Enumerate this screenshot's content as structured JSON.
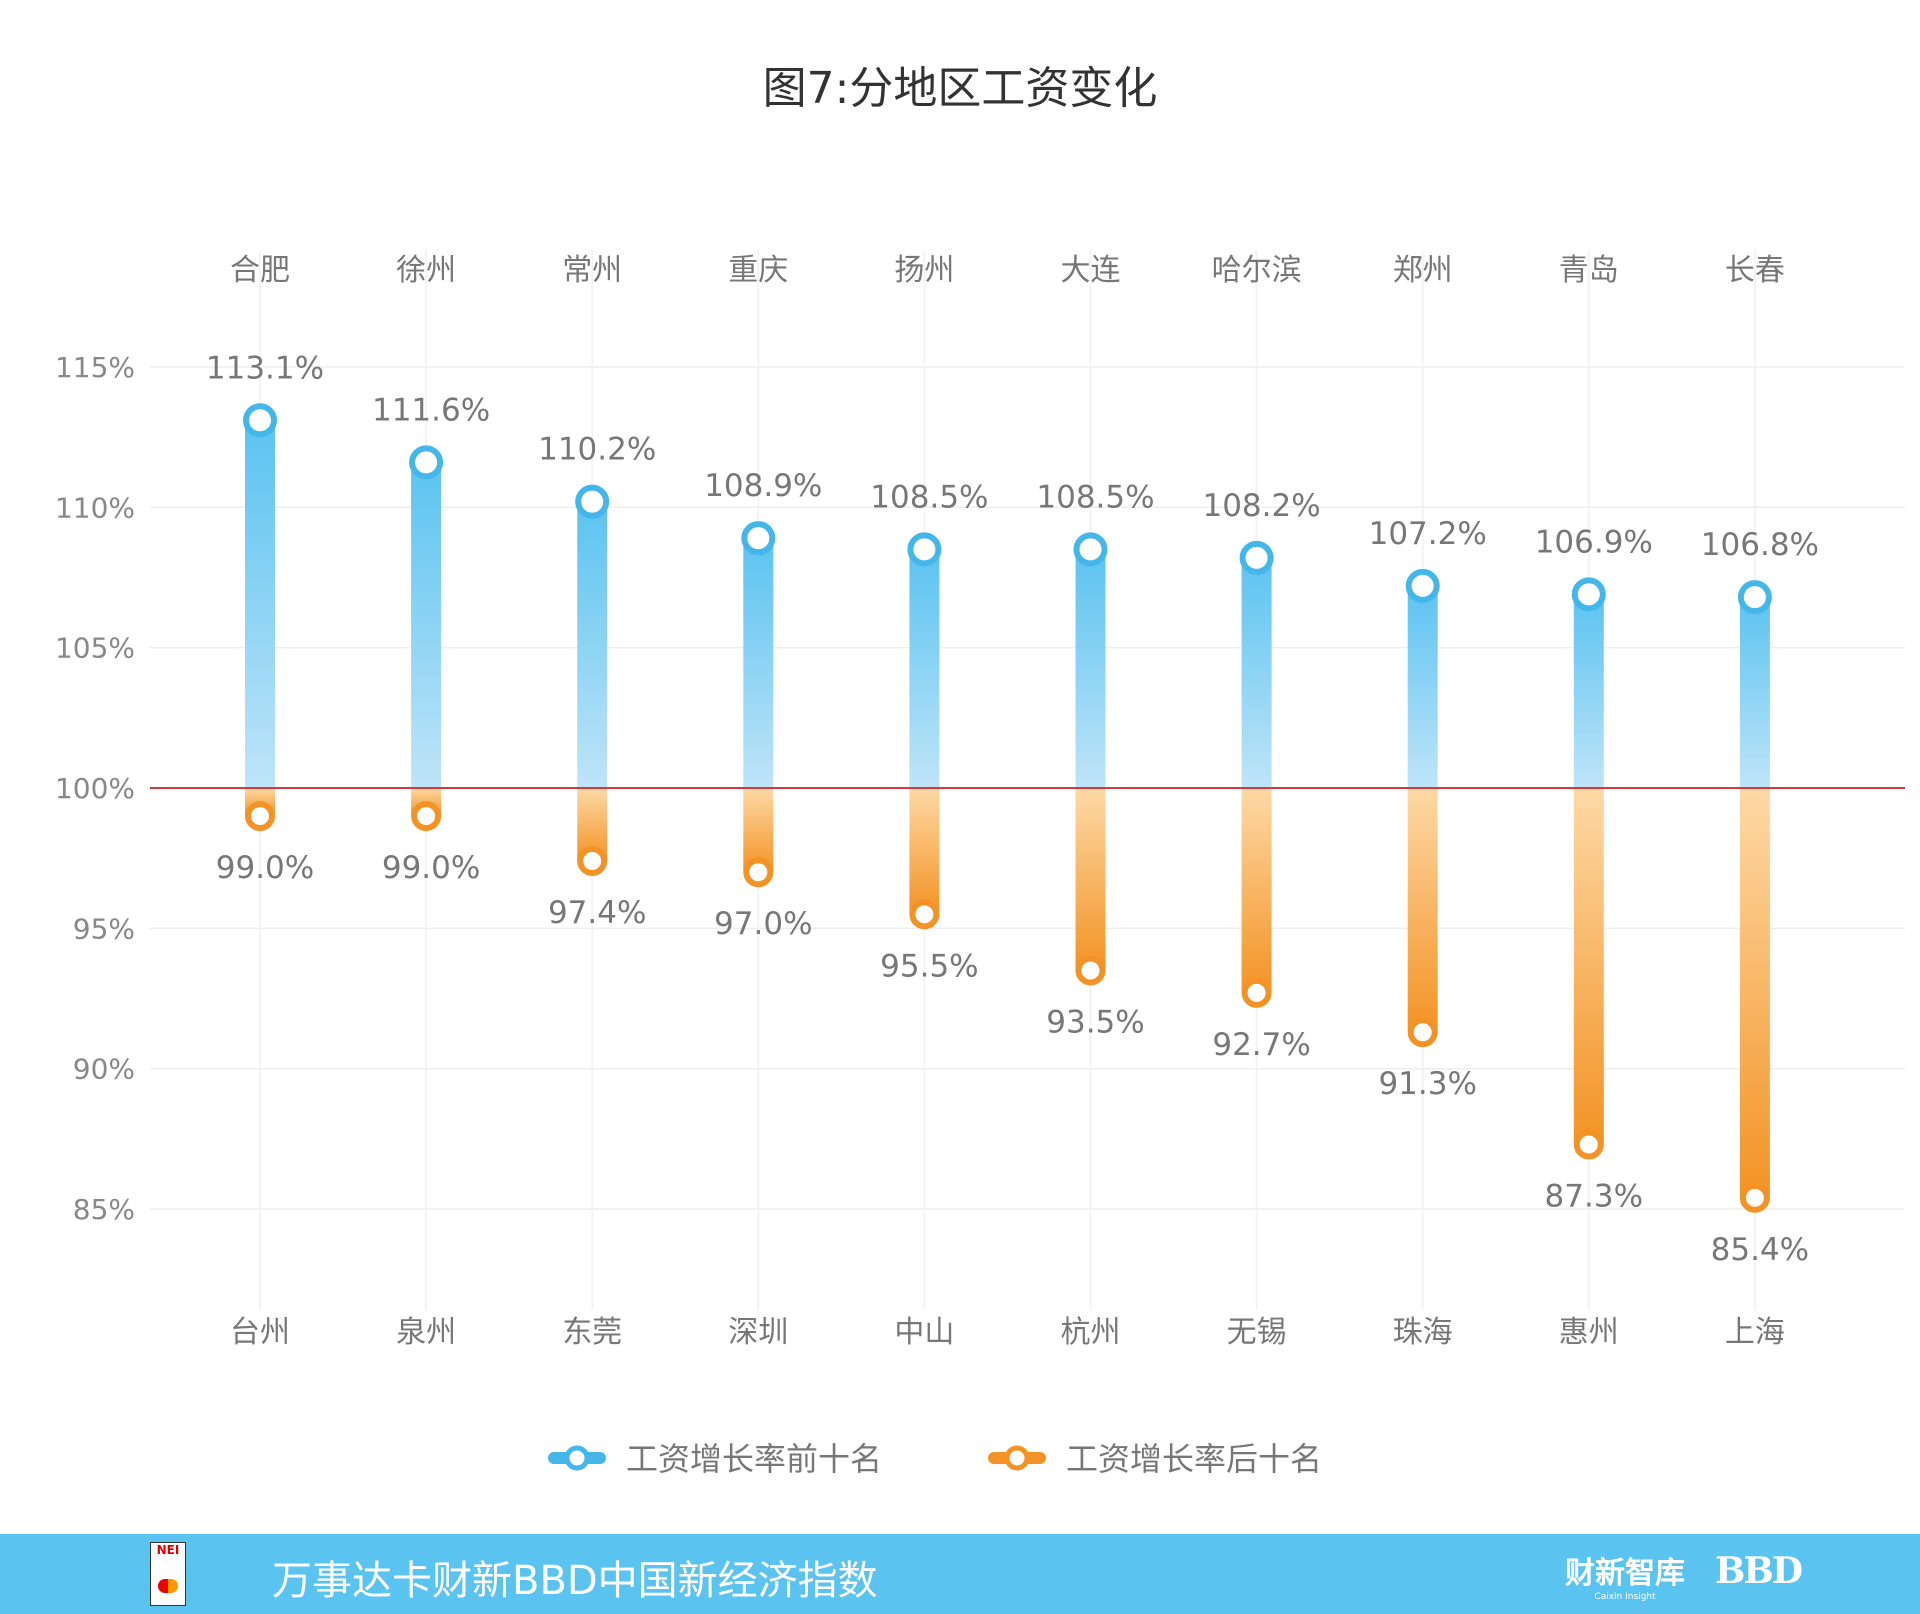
{
  "chart_data": {
    "type": "bar",
    "title": "图7:分地区工资变化",
    "yticks": [
      "85%",
      "90%",
      "95%",
      "100%",
      "105%",
      "110%",
      "115%"
    ],
    "ylim": [
      80,
      118
    ],
    "baseline": 100,
    "grid": true,
    "legend_position": "bottom",
    "series": [
      {
        "name": "工资增长率前十名",
        "color": "#5bc3f0",
        "categories": [
          "合肥",
          "徐州",
          "常州",
          "重庆",
          "扬州",
          "大连",
          "哈尔滨",
          "郑州",
          "青岛",
          "长春"
        ],
        "values": [
          113.1,
          111.6,
          110.2,
          108.9,
          108.5,
          108.5,
          108.2,
          107.2,
          106.9,
          106.8
        ],
        "labels": [
          "113.1%",
          "111.6%",
          "110.2%",
          "108.9%",
          "108.5%",
          "108.5%",
          "108.2%",
          "107.2%",
          "106.9%",
          "106.8%"
        ]
      },
      {
        "name": "工资增长率后十名",
        "color": "#f39325",
        "categories": [
          "台州",
          "泉州",
          "东莞",
          "深圳",
          "中山",
          "杭州",
          "无锡",
          "珠海",
          "惠州",
          "上海"
        ],
        "values": [
          99.0,
          99.0,
          97.4,
          97.0,
          95.5,
          93.5,
          92.7,
          91.3,
          87.3,
          85.4
        ],
        "labels": [
          "99.0%",
          "99.0%",
          "97.4%",
          "97.0%",
          "95.5%",
          "93.5%",
          "92.7%",
          "91.3%",
          "87.3%",
          "85.4%"
        ]
      }
    ],
    "baseline_color": "#d9393b"
  },
  "footer": {
    "text": "万事达卡财新BBD中国新经济指数",
    "logo_nei": "NEI",
    "logo_caixin": "财新智库",
    "logo_caixin_sub": "Caixin Insight",
    "logo_bbd": "BBD",
    "background": "#5bc3f0"
  }
}
